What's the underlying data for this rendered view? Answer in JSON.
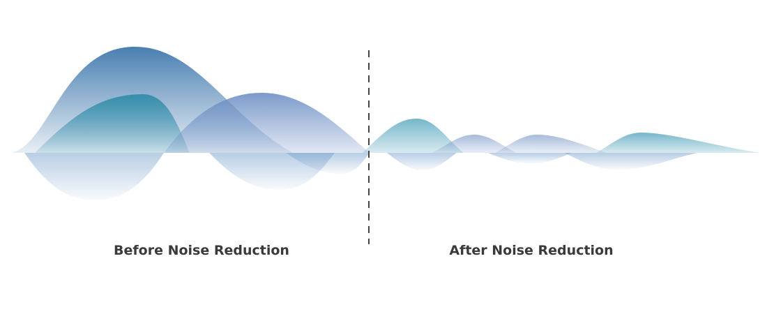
{
  "labels": {
    "before": "Before Noise Reduction",
    "after": "After Noise Reduction"
  },
  "colors": {
    "dark_blue": "#3f78ad",
    "teal": "#2d8aa8",
    "purple_blue": "#6d8fc4",
    "divider": "#444444",
    "label_text": "#3a3a3a"
  }
}
